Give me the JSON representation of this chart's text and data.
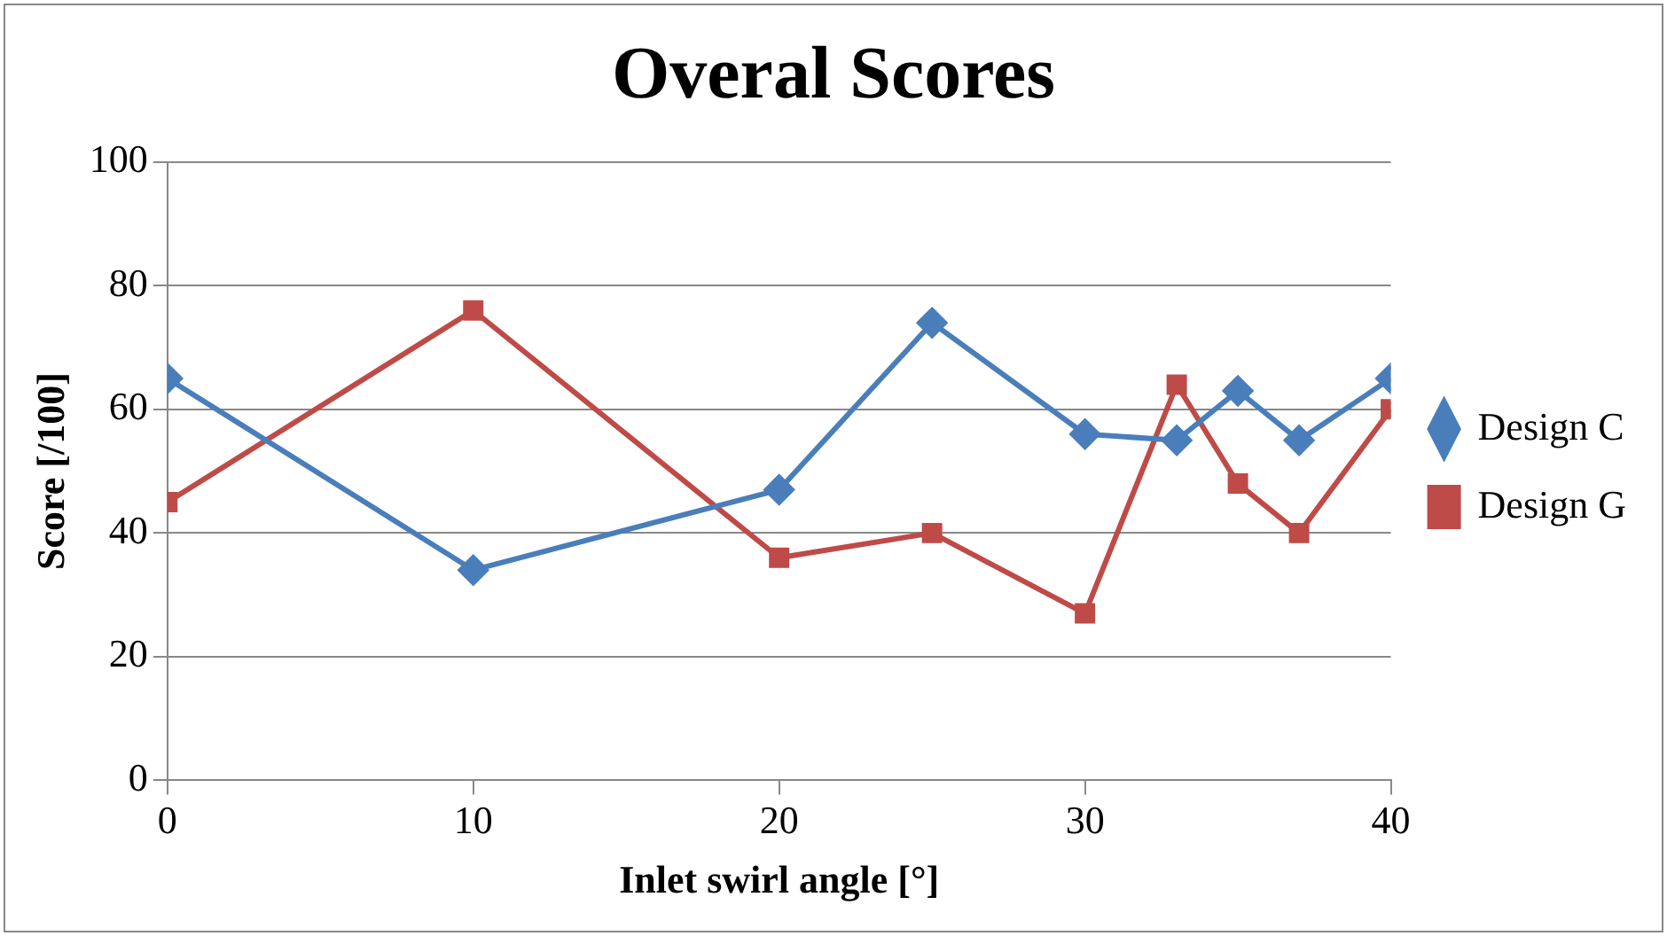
{
  "chart_data": {
    "type": "line",
    "title": "Overal Scores",
    "xlabel": "Inlet swirl angle [°]",
    "ylabel": "Score [/100]",
    "x": [
      0,
      10,
      20,
      25,
      30,
      33,
      35,
      37,
      40
    ],
    "series": [
      {
        "name": "Design C",
        "color": "#4a7ebb",
        "marker": "diamond",
        "values": [
          65,
          34,
          47,
          74,
          56,
          55,
          63,
          55,
          65
        ]
      },
      {
        "name": "Design G",
        "color": "#be4b48",
        "marker": "square",
        "values": [
          45,
          76,
          36,
          40,
          27,
          64,
          48,
          40,
          60
        ]
      }
    ],
    "xlim": [
      0,
      40
    ],
    "xticks": [
      0,
      10,
      20,
      30,
      40
    ],
    "ylim": [
      0,
      100
    ],
    "yticks": [
      0,
      20,
      40,
      60,
      80,
      100
    ],
    "grid": "y",
    "legend": "right",
    "line_style": "solid"
  }
}
